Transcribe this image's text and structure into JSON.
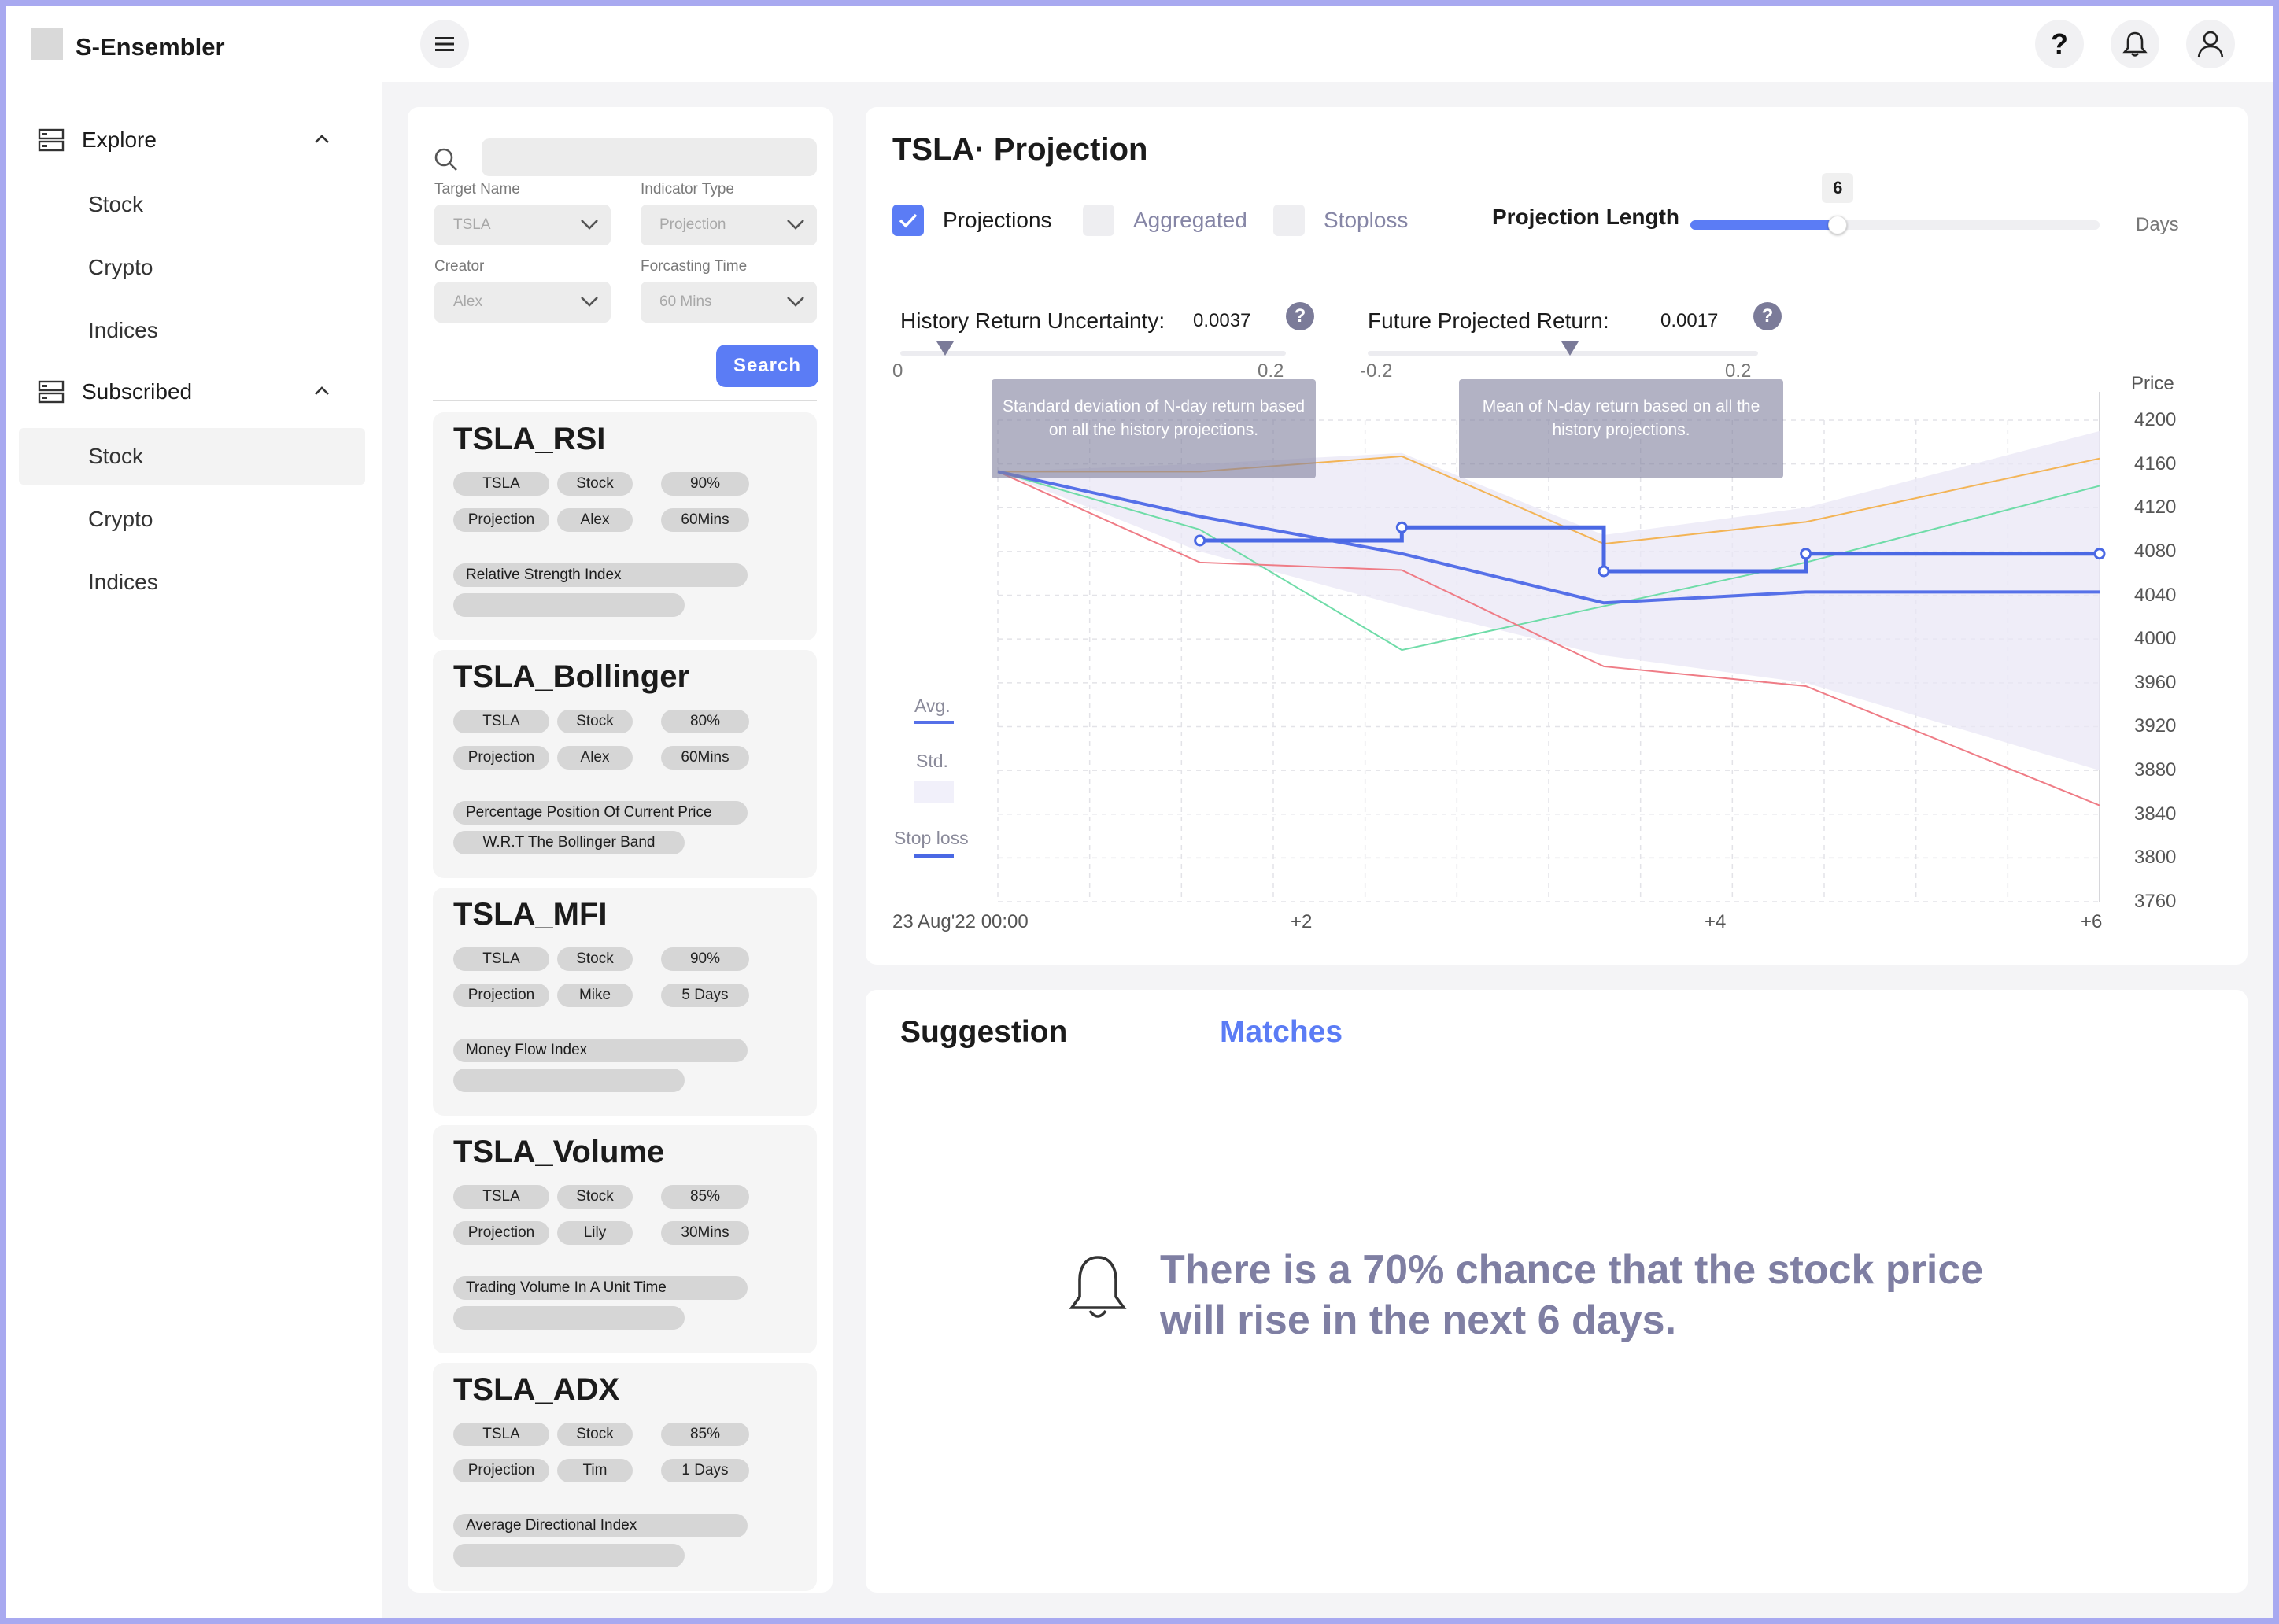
{
  "app": {
    "title": "S-Ensembler"
  },
  "header": {
    "menu_icon": "hamburger-icon",
    "help_icon": "question-icon",
    "notification_icon": "bell-icon",
    "user_icon": "user-icon"
  },
  "sidebar": {
    "groups": [
      {
        "label": "Explore",
        "icon": "server-icon",
        "items": [
          "Stock",
          "Crypto",
          "Indices"
        ]
      },
      {
        "label": "Subscribed",
        "icon": "server-icon",
        "items": [
          "Stock",
          "Crypto",
          "Indices"
        ]
      }
    ],
    "active_item": "Subscribed/Stock"
  },
  "search": {
    "input_value": "",
    "filters": [
      {
        "label": "Target Name",
        "value": "TSLA"
      },
      {
        "label": "Indicator Type",
        "value": "Projection"
      },
      {
        "label": "Creator",
        "value": "Alex"
      },
      {
        "label": "Forcasting Time",
        "value": "60 Mins"
      }
    ],
    "button_label": "Search"
  },
  "cards": [
    {
      "title": "TSLA_RSI",
      "tags": [
        "TSLA",
        "Stock",
        "90%",
        "Projection",
        "Alex",
        "60Mins"
      ],
      "desc": [
        "Relative Strength Index",
        ""
      ]
    },
    {
      "title": "TSLA_Bollinger",
      "tags": [
        "TSLA",
        "Stock",
        "80%",
        "Projection",
        "Alex",
        "60Mins"
      ],
      "desc": [
        "Percentage Position Of Current Price",
        "W.R.T The Bollinger Band"
      ]
    },
    {
      "title": "TSLA_MFI",
      "tags": [
        "TSLA",
        "Stock",
        "90%",
        "Projection",
        "Mike",
        "5 Days"
      ],
      "desc": [
        "Money Flow Index",
        ""
      ]
    },
    {
      "title": "TSLA_Volume",
      "tags": [
        "TSLA",
        "Stock",
        "85%",
        "Projection",
        "Lily",
        "30Mins"
      ],
      "desc": [
        "Trading Volume In A Unit Time",
        ""
      ]
    },
    {
      "title": "TSLA_ADX",
      "tags": [
        "TSLA",
        "Stock",
        "85%",
        "Projection",
        "Tim",
        "1 Days"
      ],
      "desc": [
        "Average Directional Index",
        ""
      ]
    }
  ],
  "projection": {
    "title": "TSLA· Projection",
    "checkboxes": [
      {
        "label": "Projections",
        "checked": true
      },
      {
        "label": "Aggregated",
        "checked": false
      },
      {
        "label": "Stoploss",
        "checked": false
      }
    ],
    "length_label": "Projection Length",
    "length_value": "6",
    "length_fraction": 0.36,
    "length_unit": "Days",
    "history": {
      "label": "History Return Uncertainty:",
      "value": "0.0037",
      "min": "0",
      "max": "0.2",
      "tooltip": "Standard deviation of N-day return based on all the history projections."
    },
    "future": {
      "label": "Future Projected Return:",
      "value": "0.0017",
      "min": "-0.2",
      "max": "0.2",
      "tooltip": "Mean of N-day return based on all the history projections."
    }
  },
  "chart_data": {
    "type": "line",
    "ylabel": "Price",
    "ylim": [
      3760,
      4200
    ],
    "yticks": [
      "4200",
      "4160",
      "4120",
      "4080",
      "4040",
      "4000",
      "3960",
      "3920",
      "3880",
      "3840",
      "3800",
      "3760"
    ],
    "xlim": [
      0,
      6
    ],
    "xtick_labels": [
      {
        "x": 0,
        "label": "23 Aug'22 00:00"
      },
      {
        "x": 2,
        "label": "+2"
      },
      {
        "x": 4,
        "label": "+4"
      },
      {
        "x": 6,
        "label": "+6"
      }
    ],
    "legend": [
      "Avg.",
      "Std.",
      "Stop loss"
    ],
    "series": [
      {
        "role": "orange",
        "color": "#f3b456",
        "x": [
          0,
          1.1,
          2.2,
          3.3,
          4.4,
          6
        ],
        "y": [
          4153,
          4153,
          4167,
          4087,
          4107,
          4165
        ]
      },
      {
        "role": "green",
        "color": "#6fdca8",
        "x": [
          0,
          1.1,
          2.2,
          3.3,
          4.4,
          6
        ],
        "y": [
          4153,
          4100,
          3990,
          4030,
          4070,
          4140
        ]
      },
      {
        "role": "red",
        "color": "#ef7c86",
        "x": [
          0,
          1.1,
          2.2,
          3.3,
          4.4,
          6
        ],
        "y": [
          4153,
          4070,
          4063,
          3975,
          3957,
          3848
        ]
      },
      {
        "role": "avg",
        "color": "#5670e8",
        "x": [
          0,
          1.1,
          2.2,
          3.3,
          4.4,
          6
        ],
        "y": [
          4153,
          4112,
          4078,
          4033,
          4043,
          4043
        ]
      }
    ],
    "std_band": {
      "x": [
        0,
        1.1,
        2.2,
        3.3,
        4.4,
        6
      ],
      "upper": [
        4153,
        4160,
        4170,
        4095,
        4120,
        4190
      ],
      "lower": [
        4153,
        4080,
        4030,
        3985,
        3960,
        3880
      ]
    },
    "stop_loss": {
      "color": "#4a68e4",
      "x": [
        1.1,
        2.2,
        2.2,
        3.3,
        3.3,
        4.4,
        4.4,
        6
      ],
      "y": [
        4090,
        4090,
        4102,
        4102,
        4062,
        4062,
        4078,
        4078
      ],
      "markers": [
        [
          1.1,
          4090
        ],
        [
          2.2,
          4102
        ],
        [
          3.3,
          4062
        ],
        [
          4.4,
          4078
        ],
        [
          6,
          4078
        ]
      ]
    }
  },
  "tabs": [
    {
      "label": "Suggestion",
      "active": true
    },
    {
      "label": "Matches",
      "active": false
    }
  ],
  "suggestion": {
    "icon": "bell-icon",
    "text_line1": "There is a 70% chance that the stock price",
    "text_line2": "will rise in the next 6 days."
  },
  "colors": {
    "accent": "#5b7cf5",
    "muted_text": "#7f7fa3"
  }
}
